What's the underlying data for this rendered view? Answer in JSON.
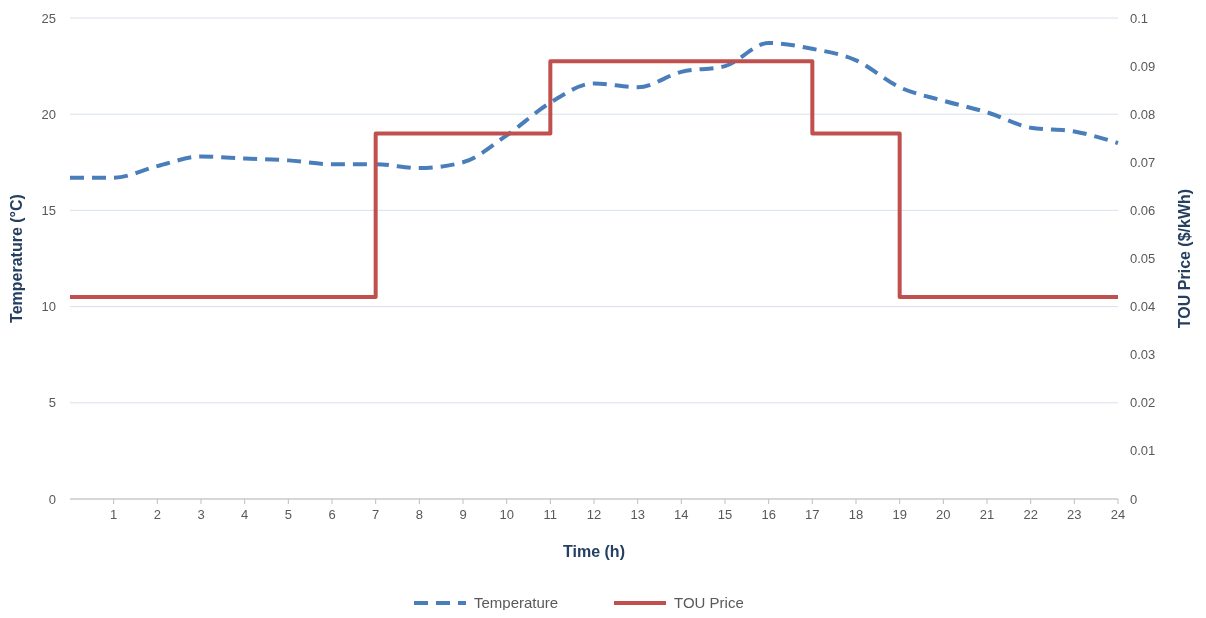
{
  "chart_data": {
    "type": "line",
    "xlabel": "Time (h)",
    "ylabel": "Temperature (°C)",
    "y2label": "TOU Price ($/kWh)",
    "x": [
      0,
      1,
      2,
      3,
      4,
      5,
      6,
      7,
      8,
      9,
      10,
      11,
      12,
      13,
      14,
      15,
      16,
      17,
      18,
      19,
      20,
      21,
      22,
      23,
      24
    ],
    "series": [
      {
        "name": "Temperature",
        "color": "#4a7ebb",
        "line_style": "dashed",
        "values": [
          16.7,
          16.7,
          17.3,
          17.8,
          17.7,
          17.6,
          17.4,
          17.4,
          17.2,
          17.5,
          18.9,
          20.6,
          21.6,
          21.4,
          22.2,
          22.5,
          23.7,
          23.4,
          22.8,
          21.4,
          20.7,
          20.1,
          19.3,
          19.1,
          18.5
        ]
      },
      {
        "name": "TOU Price",
        "type": "step",
        "axis": "y2",
        "color": "#c0504d",
        "line_style": "solid",
        "x": [
          0,
          7,
          11,
          17,
          19,
          24
        ],
        "values": [
          0.042,
          0.076,
          0.091,
          0.076,
          0.042,
          0.042
        ]
      }
    ],
    "xlim": [
      0,
      24
    ],
    "xticks": [
      1,
      2,
      3,
      4,
      5,
      6,
      7,
      8,
      9,
      10,
      11,
      12,
      13,
      14,
      15,
      16,
      17,
      18,
      19,
      20,
      21,
      22,
      23,
      24
    ],
    "ylim": [
      0,
      25
    ],
    "yticks": [
      0,
      5,
      10,
      15,
      20,
      25
    ],
    "y2lim": [
      0,
      0.1
    ],
    "y2ticks": [
      0,
      0.01,
      0.02,
      0.03,
      0.04,
      0.05,
      0.06,
      0.07,
      0.08,
      0.09,
      0.1
    ],
    "grid": "y",
    "legend": "bottom"
  }
}
